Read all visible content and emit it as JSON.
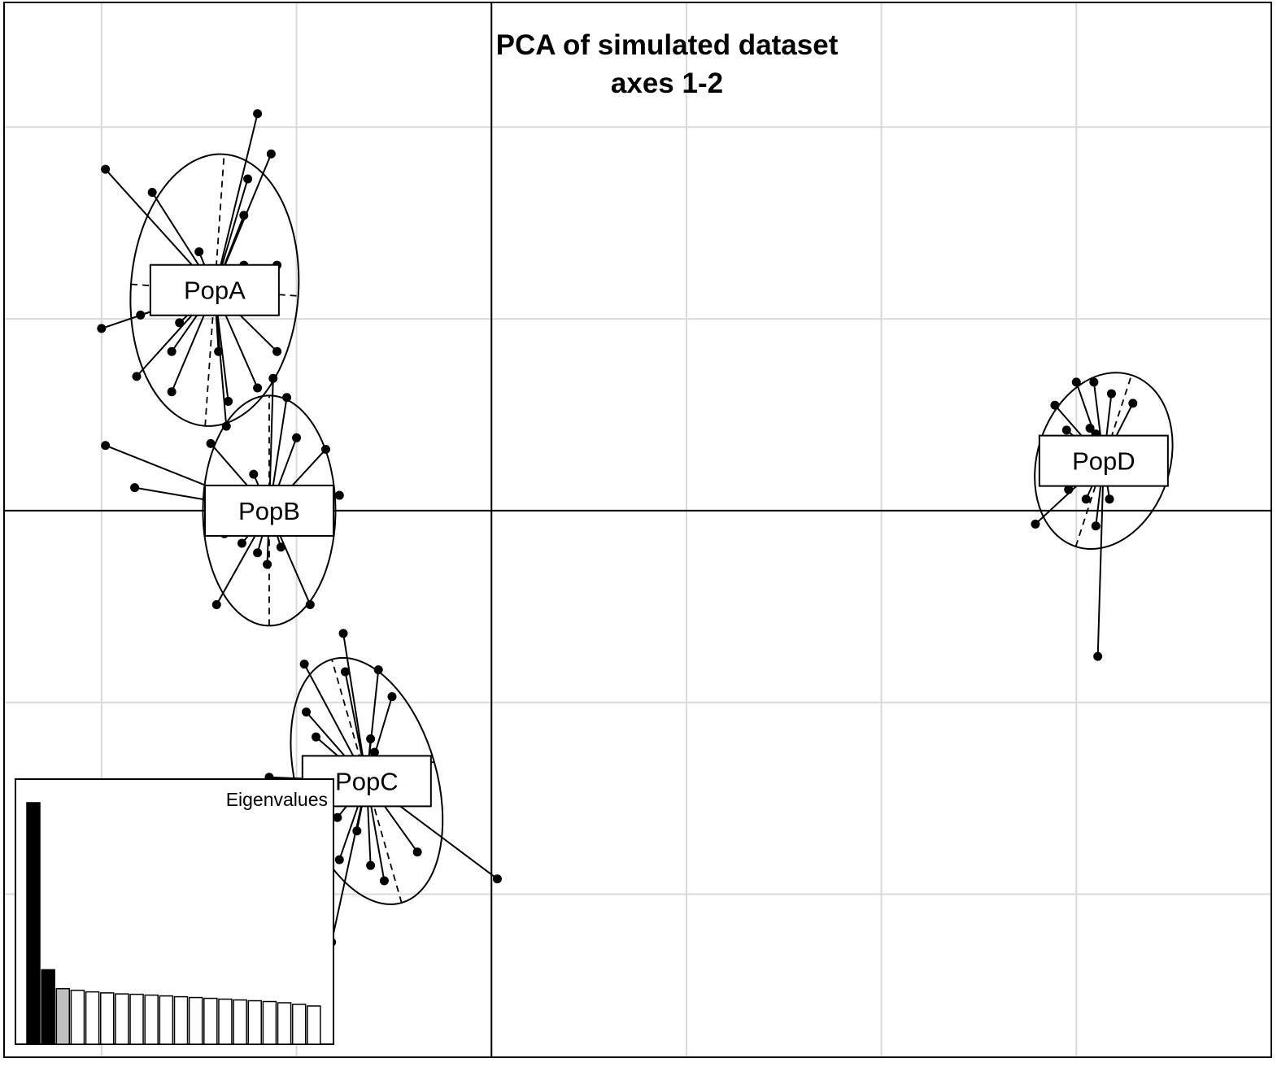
{
  "chart_data": {
    "type": "scatter",
    "title": "PCA of simulated dataset",
    "subtitle": "axes 1-2",
    "xlabel": "",
    "ylabel": "",
    "xlim": [
      -2.5,
      4.0
    ],
    "ylim": [
      -2.85,
      2.65
    ],
    "grid": true,
    "grid_step": 1,
    "origin_axes": true,
    "colors": {
      "grid": "#d9d9d9",
      "points": "#000000",
      "inset_axis1": "#000000",
      "inset_axis2": "#000000",
      "inset_axis3": "#bfbfbf",
      "inset_other": "#ffffff"
    },
    "groups": [
      {
        "name": "PopA",
        "center": [
          -1.42,
          1.15
        ],
        "ellipse": {
          "rx": 0.43,
          "ry": 0.71,
          "angle_deg": 4
        },
        "points": [
          [
            -1.2,
            2.07
          ],
          [
            -1.13,
            1.86
          ],
          [
            -1.98,
            1.78
          ],
          [
            -1.74,
            1.66
          ],
          [
            -1.25,
            1.73
          ],
          [
            -1.27,
            1.54
          ],
          [
            -1.5,
            1.35
          ],
          [
            -1.27,
            1.28
          ],
          [
            -1.1,
            1.28
          ],
          [
            -1.39,
            1.2
          ],
          [
            -1.42,
            1.1
          ],
          [
            -1.8,
            1.02
          ],
          [
            -2.0,
            0.95
          ],
          [
            -1.55,
            1.05
          ],
          [
            -1.6,
            0.98
          ],
          [
            -1.1,
            0.83
          ],
          [
            -1.64,
            0.83
          ],
          [
            -1.4,
            0.83
          ],
          [
            -1.82,
            0.7
          ],
          [
            -1.64,
            0.62
          ],
          [
            -1.2,
            0.64
          ],
          [
            -1.35,
            0.57
          ],
          [
            -1.36,
            0.44
          ]
        ]
      },
      {
        "name": "PopB",
        "center": [
          -1.14,
          0.0
        ],
        "ellipse": {
          "rx": 0.34,
          "ry": 0.6,
          "angle_deg": 0
        },
        "points": [
          [
            -1.12,
            0.69
          ],
          [
            -1.05,
            0.59
          ],
          [
            -1.98,
            0.34
          ],
          [
            -0.85,
            0.32
          ],
          [
            -1.44,
            0.35
          ],
          [
            -1.0,
            0.38
          ],
          [
            -1.22,
            0.19
          ],
          [
            -1.83,
            0.12
          ],
          [
            -0.78,
            0.08
          ],
          [
            -1.37,
            -0.12
          ],
          [
            -1.28,
            -0.17
          ],
          [
            -1.2,
            -0.22
          ],
          [
            -1.32,
            -0.1
          ],
          [
            -1.08,
            -0.19
          ],
          [
            -1.15,
            -0.28
          ],
          [
            -1.41,
            -0.49
          ],
          [
            -0.93,
            -0.49
          ]
        ]
      },
      {
        "name": "PopC",
        "center": [
          -0.64,
          -1.41
        ],
        "ellipse": {
          "rx": 0.36,
          "ry": 0.66,
          "angle_deg": -16
        },
        "points": [
          [
            -0.76,
            -0.64
          ],
          [
            -0.96,
            -0.8
          ],
          [
            -0.75,
            -0.84
          ],
          [
            -0.58,
            -0.83
          ],
          [
            -0.51,
            -0.97
          ],
          [
            -0.95,
            -1.05
          ],
          [
            -0.9,
            -1.18
          ],
          [
            -0.62,
            -1.19
          ],
          [
            -0.6,
            -1.26
          ],
          [
            -1.14,
            -1.39
          ],
          [
            -0.79,
            -1.6
          ],
          [
            -0.69,
            -1.67
          ],
          [
            -0.78,
            -1.82
          ],
          [
            -0.62,
            -1.85
          ],
          [
            -0.38,
            -1.78
          ],
          [
            -0.55,
            -1.93
          ],
          [
            0.03,
            -1.92
          ],
          [
            -0.82,
            -2.25
          ]
        ]
      },
      {
        "name": "PopD",
        "center": [
          3.14,
          0.26
        ],
        "ellipse": {
          "rx": 0.34,
          "ry": 0.47,
          "angle_deg": 18
        },
        "points": [
          [
            3.09,
            0.67
          ],
          [
            3.0,
            0.67
          ],
          [
            3.18,
            0.61
          ],
          [
            3.29,
            0.56
          ],
          [
            2.89,
            0.55
          ],
          [
            3.07,
            0.43
          ],
          [
            2.95,
            0.42
          ],
          [
            3.1,
            0.4
          ],
          [
            3.43,
            0.37
          ],
          [
            3.44,
            0.32
          ],
          [
            2.86,
            0.19
          ],
          [
            2.96,
            0.11
          ],
          [
            3.05,
            0.06
          ],
          [
            3.17,
            0.06
          ],
          [
            3.1,
            -0.08
          ],
          [
            2.79,
            -0.07
          ],
          [
            3.11,
            -0.76
          ]
        ]
      }
    ],
    "inset": {
      "title": "Eigenvalues",
      "values": [
        12.0,
        3.7,
        2.76,
        2.68,
        2.6,
        2.55,
        2.5,
        2.48,
        2.44,
        2.4,
        2.36,
        2.32,
        2.28,
        2.24,
        2.2,
        2.16,
        2.12,
        2.06,
        1.98,
        1.9
      ],
      "highlighted_axes": [
        1,
        2,
        3
      ]
    }
  }
}
